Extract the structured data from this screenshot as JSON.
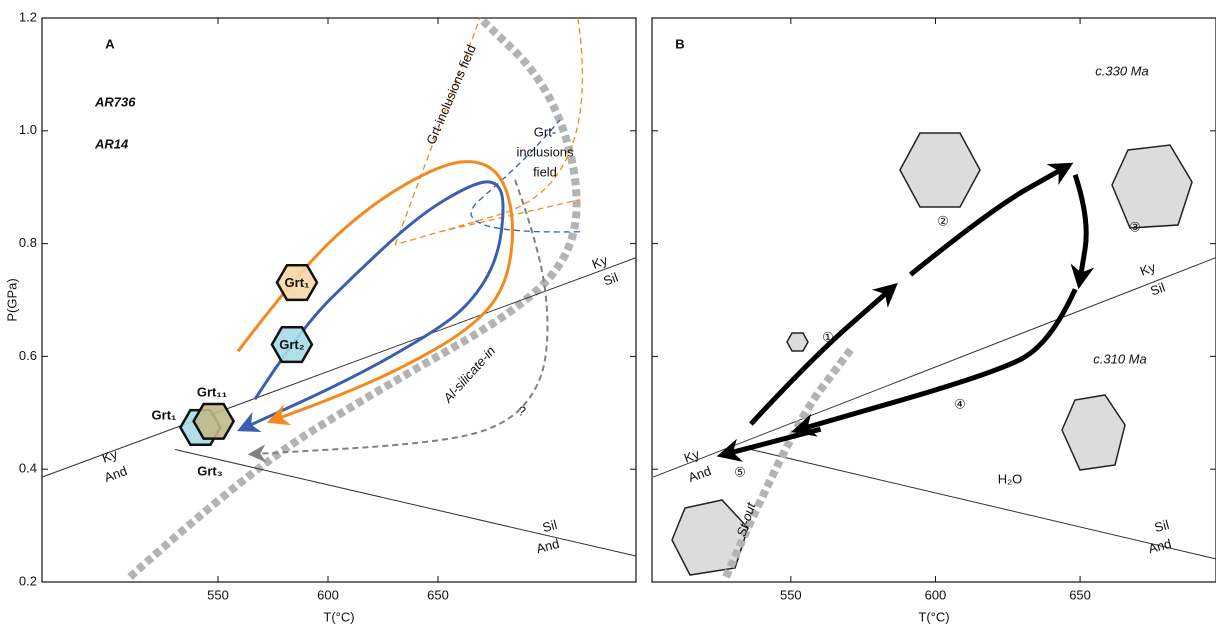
{
  "chart_data": [
    {
      "type": "line",
      "xlabel": "T(°C)",
      "ylabel": "P(GPa)",
      "xlim": [
        470,
        740
      ],
      "ylim": [
        0.2,
        1.2
      ],
      "xticks": [
        550,
        600,
        650
      ],
      "yticks": [
        0.2,
        0.4,
        0.6,
        0.8,
        {
          "value": 1,
          "label": "1.0"
        },
        1.2
      ],
      "series": [
        {
          "name": "AR736",
          "color": "#3a5fad",
          "x": [
            566.8,
            587.3,
            614.5,
            641.8,
            664.5,
            675.9,
            680.5,
            677.3,
            664.5,
            646.4,
            610,
            562.3
          ],
          "y": [
            0.524,
            0.648,
            0.754,
            0.851,
            0.904,
            0.913,
            0.878,
            0.772,
            0.692,
            0.639,
            0.559,
            0.474
          ]
        },
        {
          "name": "AR14",
          "color": "#f28a1d",
          "x": [
            559.1,
            587.3,
            619.1,
            650.9,
            669.1,
            680.5,
            685,
            680.5,
            664.5,
            632.7,
            600.9,
            575.9
          ],
          "y": [
            0.609,
            0.754,
            0.869,
            0.94,
            0.949,
            0.913,
            0.825,
            0.719,
            0.648,
            0.577,
            0.524,
            0.488
          ]
        }
      ],
      "lines": [
        {
          "color": "#b3b3b3",
          "style": "thick-dotted",
          "x": [
            510,
            564.5,
            623.6,
            687.3,
            712.3,
            713.6,
            698.6,
            669.1
          ],
          "y": [
            0.209,
            0.4,
            0.542,
            0.683,
            0.789,
            0.931,
            1.09,
            1.2
          ]
        },
        {
          "color": "#333333",
          "style": "solid",
          "x": [
            470,
            740
          ],
          "y": [
            0.386,
            0.775
          ]
        },
        {
          "color": "#333333",
          "style": "solid",
          "x": [
            530.5,
            740
          ],
          "y": [
            0.435,
            0.246
          ]
        },
        {
          "color": "#f28a1d",
          "style": "dashed",
          "x": [
            630.5,
            669.1
          ],
          "y": [
            0.798,
            1.2
          ]
        },
        {
          "color": "#f28a1d",
          "style": "dashed",
          "x": [
            713.6,
            724.5,
            630.5
          ],
          "y": [
            1.2,
            0.904,
            0.798
          ]
        },
        {
          "color": "#f28a1d",
          "style": "dashed",
          "x": [
            650.9,
            714.5
          ],
          "y": [
            0.821,
            0.878
          ]
        },
        {
          "color": "#3a5fad",
          "style": "dashed",
          "x": [
            714.5,
            650.9,
            687.3,
            705.5
          ],
          "y": [
            0.821,
            0.816,
            0.94,
            1.019
          ]
        },
        {
          "color": "#808080",
          "style": "dashed-arrow",
          "x": [
            685,
            696.4,
            700.9,
            696.4,
            678.2,
            641.8,
            566.8
          ],
          "y": [
            0.913,
            0.789,
            0.648,
            0.542,
            0.471,
            0.444,
            0.427
          ]
        }
      ],
      "garnets": [
        {
          "label": "Grt₁",
          "x": 585.9,
          "y": 0.731,
          "color": "#f8d7a8"
        },
        {
          "label": "Grt₂",
          "x": 583.6,
          "y": 0.621,
          "color": "#a6dce9"
        },
        {
          "x": 542,
          "y": 0.474,
          "color": "#a6dce9"
        },
        {
          "x": 548,
          "y": 0.485,
          "color": "#c2b98a"
        }
      ],
      "annotations": [
        "A",
        "Grt-inclusions field",
        "Grt-",
        "inclusions",
        "field",
        "Al-silicate-in",
        "?",
        "Ky",
        "And",
        "Ky",
        "Sil",
        "Sil",
        "And",
        "Grt₁",
        "Grt₁₁",
        "Grt₃"
      ]
    },
    {
      "type": "line",
      "xlabel": "T(°C)",
      "show_ytick_labels": false,
      "xlim": [
        502,
        697
      ],
      "ylim": [
        0.2,
        1.2
      ],
      "xticks": [
        550,
        600,
        650
      ],
      "yticks": [
        0.2,
        0.4,
        0.6,
        0.8,
        1,
        1.2
      ],
      "lines": [
        {
          "color": "#333333",
          "style": "solid",
          "x": [
            502.4,
            696.9
          ],
          "y": [
            0.386,
            0.775
          ]
        },
        {
          "color": "#333333",
          "style": "solid",
          "x": [
            536.2,
            696.9
          ],
          "y": [
            0.435,
            0.241
          ]
        },
        {
          "color": "#b3b3b3",
          "style": "thick-dotted",
          "x": [
            527.6,
            550,
            570.7
          ],
          "y": [
            0.209,
            0.471,
            0.612
          ]
        },
        {
          "color": "#000000",
          "style": "thick-arrow",
          "x": [
            536.2,
            556.9,
            584.5
          ],
          "y": [
            0.48,
            0.595,
            0.719
          ]
        },
        {
          "color": "#000000",
          "style": "thick-arrow",
          "x": [
            591.4,
            619,
            644.8
          ],
          "y": [
            0.745,
            0.86,
            0.935
          ]
        },
        {
          "color": "#000000",
          "style": "thick-arrow",
          "x": [
            648.3,
            653.4,
            650
          ],
          "y": [
            0.922,
            0.843,
            0.736
          ]
        },
        {
          "color": "#000000",
          "style": "thick-arrow",
          "x": [
            648.3,
            639.7,
            619,
            553.4
          ],
          "y": [
            0.719,
            0.621,
            0.568,
            0.471
          ]
        },
        {
          "color": "#000000",
          "style": "thick-arrow",
          "x": [
            560.3,
            527.6
          ],
          "y": [
            0.471,
            0.427
          ]
        }
      ],
      "annotations": [
        "B",
        "c.330 Ma",
        "c.310 Ma",
        "①",
        "②",
        "③",
        "④",
        "⑤",
        "H₂O",
        "Ky",
        "Sil",
        "Ky",
        "And",
        "Sil",
        "And",
        "St-out"
      ]
    }
  ]
}
